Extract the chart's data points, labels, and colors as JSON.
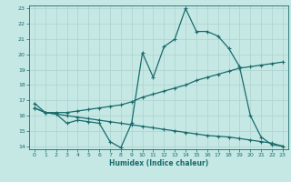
{
  "xlabel": "Humidex (Indice chaleur)",
  "bg_color": "#c5e8e5",
  "grid_color": "#b0d5d0",
  "line_color": "#1a6b6b",
  "xlim": [
    -0.5,
    23.5
  ],
  "ylim": [
    13.8,
    23.2
  ],
  "xticks": [
    0,
    1,
    2,
    3,
    4,
    5,
    6,
    7,
    8,
    9,
    10,
    11,
    12,
    13,
    14,
    15,
    16,
    17,
    18,
    19,
    20,
    21,
    22,
    23
  ],
  "yticks": [
    14,
    15,
    16,
    17,
    18,
    19,
    20,
    21,
    22,
    23
  ],
  "line1_x": [
    0,
    1,
    2,
    3,
    4,
    5,
    6,
    7,
    8,
    9,
    10,
    11,
    12,
    13,
    14,
    15,
    16,
    17,
    18,
    19,
    20,
    21,
    22,
    23
  ],
  "line1_y": [
    16.8,
    16.2,
    16.1,
    15.5,
    15.7,
    15.6,
    15.5,
    14.3,
    13.9,
    15.5,
    20.1,
    18.5,
    20.5,
    21.0,
    23.0,
    21.5,
    21.5,
    21.2,
    20.4,
    19.2,
    16.0,
    14.6,
    14.1,
    14.0
  ],
  "line2_x": [
    0,
    1,
    2,
    3,
    4,
    5,
    6,
    7,
    8,
    9,
    10,
    11,
    12,
    13,
    14,
    15,
    16,
    17,
    18,
    19,
    20,
    21,
    22,
    23
  ],
  "line2_y": [
    16.5,
    16.2,
    16.2,
    16.2,
    16.3,
    16.4,
    16.5,
    16.6,
    16.7,
    16.9,
    17.2,
    17.4,
    17.6,
    17.8,
    18.0,
    18.3,
    18.5,
    18.7,
    18.9,
    19.1,
    19.2,
    19.3,
    19.4,
    19.5
  ],
  "line3_x": [
    0,
    1,
    2,
    3,
    4,
    5,
    6,
    7,
    8,
    9,
    10,
    11,
    12,
    13,
    14,
    15,
    16,
    17,
    18,
    19,
    20,
    21,
    22,
    23
  ],
  "line3_y": [
    16.5,
    16.2,
    16.1,
    16.0,
    15.9,
    15.8,
    15.7,
    15.6,
    15.5,
    15.4,
    15.3,
    15.2,
    15.1,
    15.0,
    14.9,
    14.8,
    14.7,
    14.65,
    14.6,
    14.5,
    14.4,
    14.3,
    14.2,
    14.0
  ],
  "marker": "+",
  "markersize": 3.5,
  "linewidth": 0.9
}
